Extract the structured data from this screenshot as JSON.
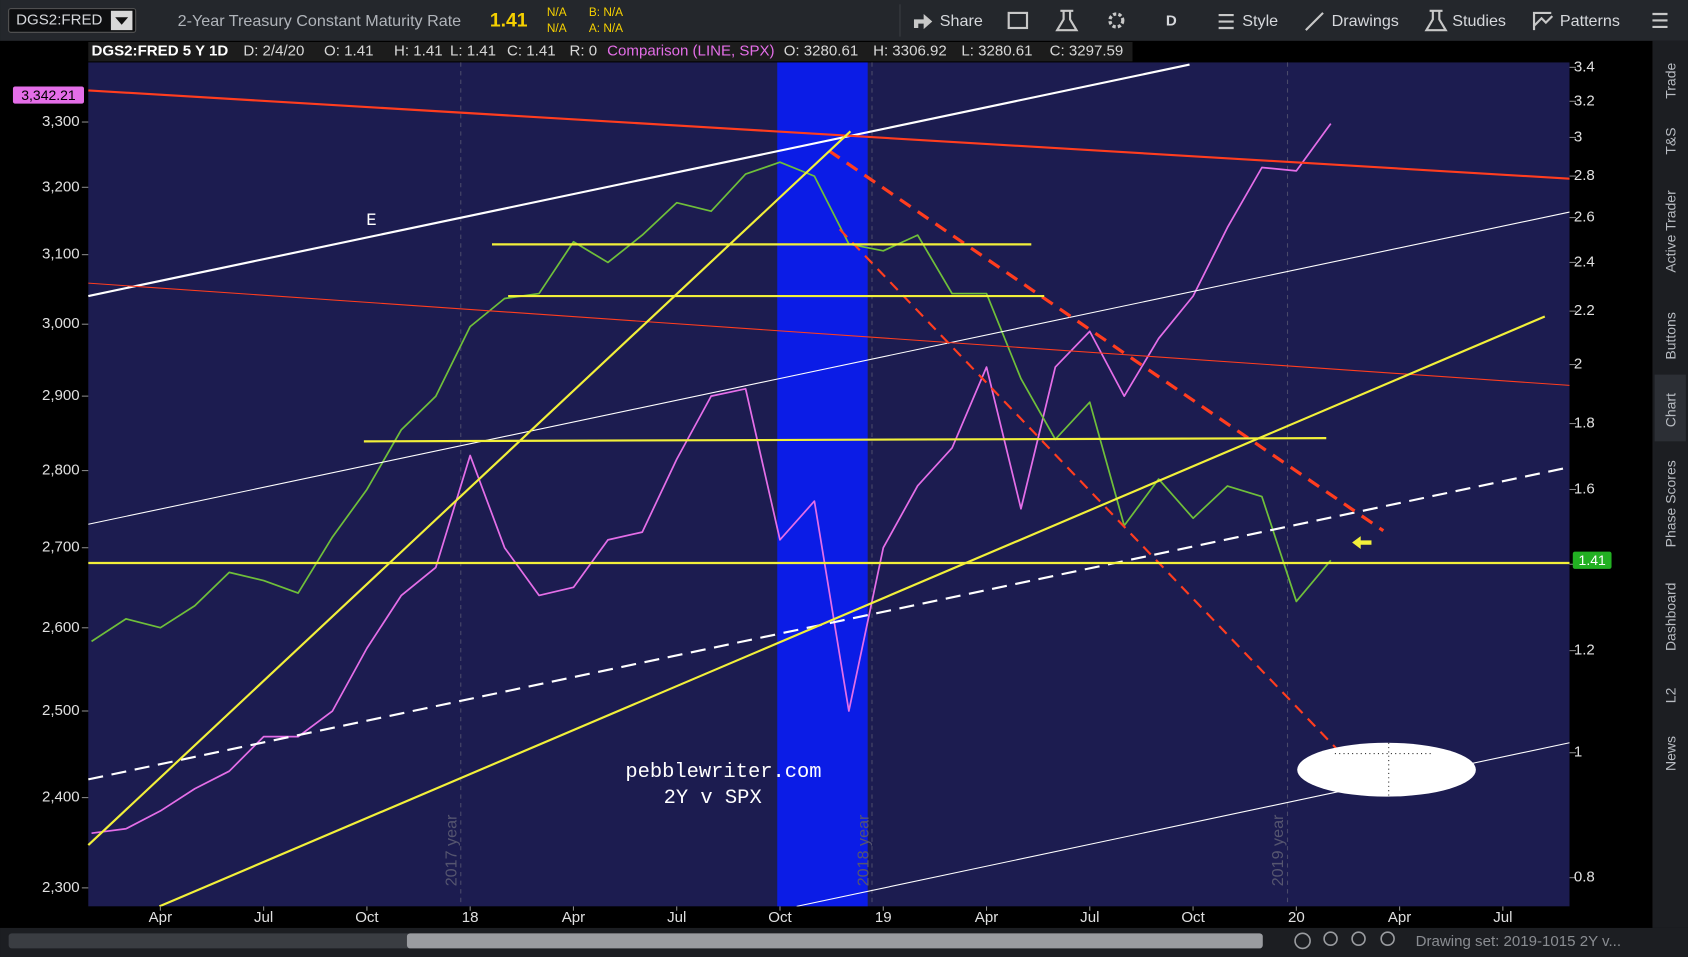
{
  "toolbar": {
    "symbol": "DGS2:FRED",
    "description": "2-Year Treasury Constant Maturity Rate",
    "last": "1.41",
    "change": "N/A",
    "change_percent": "N/A",
    "bid": "B: N/A",
    "ask": "A: N/A",
    "aggregation": "D",
    "buttons": [
      "Share",
      "Style",
      "Drawings",
      "Studies",
      "Patterns"
    ]
  },
  "header": {
    "symbol": "DGS2:FRED 5 Y 1D",
    "items": [
      "D: 2/4/20",
      "O: 1.41",
      "H: 1.41",
      "L: 1.41",
      "C: 1.41",
      "R: 0"
    ],
    "comparison": "Comparison (LINE, SPX)",
    "comparison_items": [
      "O: 3280.61",
      "H: 3306.92",
      "L: 3280.61",
      "C: 3297.59"
    ]
  },
  "side_tabs": [
    "Trade",
    "T&S",
    "Active Trader",
    "Buttons",
    "Chart",
    "Phase Scores",
    "Dashboard",
    "L2",
    "News"
  ],
  "status": "Drawing set: 2019-1015 2Y v...",
  "chart_data": {
    "type": "line",
    "categories": [
      null,
      null,
      "Apr",
      null,
      null,
      "Jul",
      null,
      null,
      "Oct",
      null,
      null,
      "18",
      null,
      null,
      "Apr",
      null,
      null,
      "Jul",
      null,
      null,
      "Oct",
      null,
      null,
      "19",
      null,
      null,
      "Apr",
      null,
      null,
      "Jul",
      null,
      null,
      "Oct",
      null,
      null,
      "20",
      null,
      null,
      "Apr",
      null,
      null,
      "Jul",
      null,
      null
    ],
    "series": [
      {
        "color": "#e46ee8",
        "axis": "y",
        "values": [
          2360,
          2365,
          2385,
          2410,
          2430,
          2470,
          2470,
          2500,
          2575,
          2640,
          2675,
          2820,
          2700,
          2640,
          2650,
          2710,
          2720,
          2815,
          2900,
          2910,
          2710,
          2760,
          2500,
          2700,
          2780,
          2830,
          2940,
          2750,
          2940,
          2990,
          2900,
          2980,
          3040,
          3140,
          3230,
          3225,
          3297.59,
          null,
          null,
          null,
          null,
          null,
          null,
          null
        ]
      },
      {
        "color": "#6fbf3a",
        "axis": "y2",
        "values": [
          1.22,
          1.27,
          1.25,
          1.3,
          1.38,
          1.36,
          1.33,
          1.47,
          1.6,
          1.78,
          1.89,
          2.14,
          2.25,
          2.27,
          2.49,
          2.4,
          2.52,
          2.67,
          2.63,
          2.81,
          2.87,
          2.8,
          2.48,
          2.45,
          2.52,
          2.27,
          2.27,
          1.95,
          1.75,
          1.87,
          1.5,
          1.63,
          1.52,
          1.61,
          1.58,
          1.31,
          1.41,
          null,
          null,
          null,
          null,
          null,
          null,
          null
        ]
      }
    ],
    "ylim": [
      2280,
      3394
    ],
    "ylog": true,
    "yticks": [
      {
        "value": 2300,
        "label": "2,300"
      },
      {
        "value": 2400,
        "label": "2,400"
      },
      {
        "value": 2500,
        "label": "2,500"
      },
      {
        "value": 2600,
        "label": "2,600"
      },
      {
        "value": 2700,
        "label": "2,700"
      },
      {
        "value": 2800,
        "label": "2,800"
      },
      {
        "value": 2900,
        "label": "2,900"
      },
      {
        "value": 3000,
        "label": "3,000"
      },
      {
        "value": 3100,
        "label": "3,100"
      },
      {
        "value": 3200,
        "label": "3,200"
      },
      {
        "value": 3300,
        "label": "3,300"
      }
    ],
    "y2lim": [
      0.76,
      3.43
    ],
    "y2log": true,
    "y2ticks": [
      0.8,
      1,
      1.2,
      1.4,
      1.6,
      1.8,
      2,
      2.2,
      2.4,
      2.6,
      2.8,
      3,
      3.2,
      3.4
    ],
    "price_markers": [
      {
        "value": 3342.21,
        "label": "3,342.21",
        "axis": "y",
        "color": "#e46ee8"
      },
      {
        "value": 1.41,
        "label": "1.41",
        "axis": "y2",
        "color": "#22b022"
      }
    ],
    "annotations": [
      "E",
      "pebblewriter.com",
      "2Y v SPX",
      "2017 year",
      "2018 year",
      "2019 year"
    ]
  }
}
